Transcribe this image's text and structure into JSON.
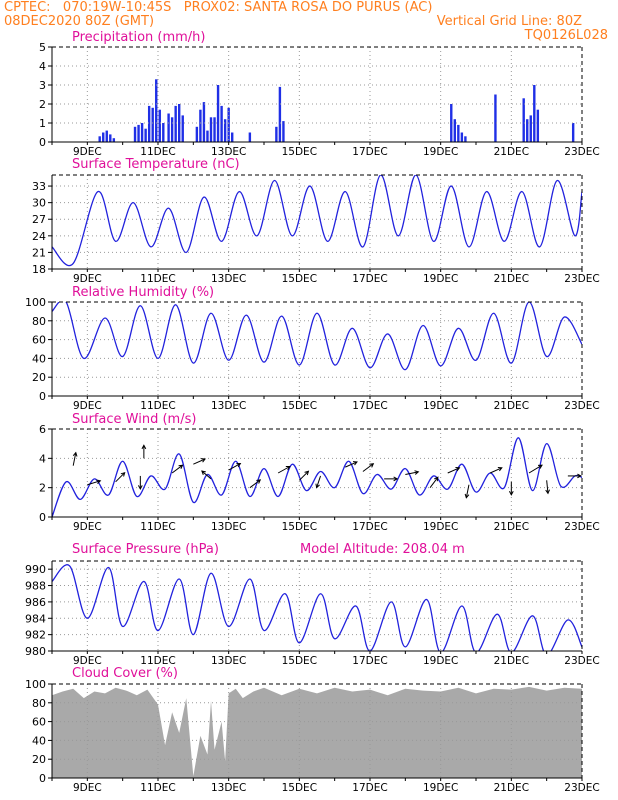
{
  "header": {
    "line1_left": "CPTEC:   070:19W-10:45S   PROX02: SANTA ROSA DO PURUS (AC)",
    "line2_left": "08DEC2020 80Z (GMT)",
    "line2_right": "Vertical Grid Line: 80Z",
    "line3_right": "TQ0126L028"
  },
  "colors": {
    "header": "#ff7f1f",
    "title": "#e0109a",
    "line": "#2222dd",
    "bars": "#1f2fe6",
    "cloud": "#a9a9a9",
    "grid": "#999999"
  },
  "x_axis": {
    "ticks": [
      "9DEC",
      "11DEC",
      "13DEC",
      "15DEC",
      "17DEC",
      "19DEC",
      "21DEC",
      "23DEC"
    ],
    "tick_days": [
      1,
      3,
      5,
      7,
      9,
      11,
      13,
      15
    ],
    "xlim": [
      0,
      15
    ]
  },
  "chart_data": [
    {
      "id": "precip",
      "type": "bar",
      "title": "Precipitation (mm/h)",
      "ylim": [
        0,
        5
      ],
      "yticks": [
        "0",
        "1",
        "2",
        "3",
        "4",
        "5"
      ],
      "x_days": [
        1.35,
        1.45,
        1.55,
        1.65,
        1.75,
        2.35,
        2.45,
        2.55,
        2.65,
        2.75,
        2.85,
        2.95,
        3.05,
        3.15,
        3.3,
        3.4,
        3.5,
        3.6,
        3.7,
        4.1,
        4.2,
        4.3,
        4.4,
        4.5,
        4.6,
        4.7,
        4.8,
        4.9,
        5.0,
        5.1,
        5.6,
        6.35,
        6.45,
        6.55,
        11.3,
        11.4,
        11.5,
        11.6,
        11.7,
        12.55,
        13.35,
        13.45,
        13.55,
        13.65,
        13.75,
        14.75
      ],
      "values": [
        0.3,
        0.5,
        0.6,
        0.4,
        0.2,
        0.8,
        0.9,
        1.0,
        0.7,
        1.9,
        1.8,
        3.3,
        1.7,
        1.0,
        1.5,
        1.3,
        1.9,
        2.0,
        1.4,
        0.8,
        1.7,
        2.1,
        0.6,
        1.3,
        1.3,
        3.0,
        1.9,
        1.2,
        1.8,
        0.5,
        0.5,
        0.8,
        2.9,
        1.1,
        2.0,
        1.2,
        0.9,
        0.5,
        0.3,
        2.5,
        2.3,
        1.2,
        1.4,
        3.0,
        1.7,
        1.0
      ]
    },
    {
      "id": "temp",
      "type": "line",
      "title": "Surface Temperature (nC)",
      "ylim": [
        18,
        35
      ],
      "yticks": [
        "18",
        "21",
        "24",
        "27",
        "30",
        "33"
      ],
      "x_days": [
        0,
        0.6,
        1.3,
        1.8,
        2.3,
        2.8,
        3.3,
        3.8,
        4.3,
        4.8,
        5.3,
        5.8,
        6.3,
        6.8,
        7.3,
        7.8,
        8.3,
        8.8,
        9.3,
        9.8,
        10.3,
        10.8,
        11.3,
        11.8,
        12.3,
        12.8,
        13.3,
        13.8,
        14.3,
        14.8,
        15.0
      ],
      "values": [
        22,
        19,
        32,
        23,
        30,
        22,
        29,
        21,
        31,
        23,
        32,
        24,
        34,
        24,
        33,
        23,
        32,
        22,
        35,
        24,
        35,
        23,
        33,
        22,
        32,
        23,
        32,
        22,
        34,
        24,
        32
      ]
    },
    {
      "id": "rh",
      "type": "line",
      "title": "Relative Humidity (%)",
      "ylim": [
        0,
        100
      ],
      "yticks": [
        "0",
        "20",
        "40",
        "60",
        "80",
        "100"
      ],
      "x_days": [
        0,
        0.4,
        0.9,
        1.5,
        2.0,
        2.5,
        3.0,
        3.5,
        4.0,
        4.5,
        5.0,
        5.5,
        6.0,
        6.5,
        7.0,
        7.5,
        8.0,
        8.5,
        9.0,
        9.5,
        10.0,
        10.5,
        11.0,
        11.5,
        12.0,
        12.5,
        13.0,
        13.5,
        14.0,
        14.5,
        15.0
      ],
      "values": [
        90,
        100,
        40,
        83,
        42,
        96,
        40,
        97,
        35,
        88,
        38,
        86,
        36,
        85,
        33,
        88,
        33,
        72,
        30,
        66,
        28,
        75,
        32,
        72,
        38,
        88,
        35,
        100,
        42,
        84,
        55
      ]
    },
    {
      "id": "wind",
      "type": "line",
      "title": "Surface Wind (m/s)",
      "ylim": [
        0,
        6
      ],
      "yticks": [
        "0",
        "2",
        "4",
        "6"
      ],
      "x_days": [
        0,
        0.4,
        0.8,
        1.2,
        1.6,
        2.0,
        2.4,
        2.8,
        3.2,
        3.6,
        4.0,
        4.4,
        4.8,
        5.2,
        5.6,
        6.0,
        6.4,
        6.8,
        7.2,
        7.6,
        8.0,
        8.4,
        8.8,
        9.2,
        9.6,
        10.0,
        10.4,
        10.8,
        11.2,
        11.6,
        12.0,
        12.4,
        12.8,
        13.2,
        13.6,
        14.0,
        14.4,
        14.8,
        15.0
      ],
      "values": [
        0,
        2.4,
        1.2,
        2.6,
        1.5,
        3.8,
        1.4,
        2.8,
        1.9,
        4.3,
        1.0,
        2.9,
        1.5,
        3.8,
        1.4,
        3.3,
        1.4,
        3.6,
        1.8,
        3.1,
        2.0,
        3.8,
        1.6,
        2.9,
        1.9,
        3.3,
        1.5,
        2.8,
        1.9,
        3.6,
        1.7,
        3.0,
        2.0,
        5.4,
        1.8,
        5.0,
        2.1,
        2.8,
        2.7
      ]
    },
    {
      "id": "pressure",
      "type": "line",
      "title": "Surface Pressure (hPa)",
      "annotation": "Model Altitude: 208.04 m",
      "ylim": [
        980,
        991
      ],
      "yticks": [
        "980",
        "982",
        "984",
        "986",
        "988",
        "990"
      ],
      "x_days": [
        0,
        0.5,
        1.0,
        1.6,
        2.0,
        2.6,
        3.0,
        3.6,
        4.0,
        4.5,
        5.0,
        5.6,
        6.0,
        6.6,
        7.0,
        7.6,
        8.0,
        8.6,
        9.0,
        9.6,
        10.0,
        10.6,
        11.0,
        11.6,
        12.0,
        12.6,
        13.0,
        13.6,
        14.0,
        14.6,
        15.0
      ],
      "values": [
        988.5,
        990.4,
        984.0,
        990.2,
        983.0,
        988.5,
        982.5,
        988.8,
        982.0,
        989.5,
        983.0,
        988.8,
        982.5,
        987.0,
        981.0,
        987.0,
        981.5,
        985.5,
        980.0,
        986.0,
        980.5,
        986.3,
        979.8,
        985.5,
        979.8,
        984.5,
        979.8,
        984.3,
        979.5,
        983.8,
        980.5
      ]
    },
    {
      "id": "cloud",
      "type": "area",
      "title": "Cloud Cover (%)",
      "ylim": [
        0,
        100
      ],
      "yticks": [
        "0",
        "20",
        "40",
        "60",
        "80",
        "100"
      ],
      "x_days": [
        0,
        0.3,
        0.6,
        0.9,
        1.2,
        1.5,
        1.8,
        2.1,
        2.4,
        2.7,
        3.0,
        3.2,
        3.4,
        3.6,
        3.8,
        4.0,
        4.2,
        4.4,
        4.5,
        4.6,
        4.8,
        4.9,
        5.0,
        5.2,
        5.4,
        5.7,
        6.0,
        6.5,
        7.0,
        7.5,
        8.0,
        8.5,
        9.0,
        9.5,
        10.0,
        10.5,
        11.0,
        11.5,
        12.0,
        12.5,
        13.0,
        13.5,
        14.0,
        14.5,
        15.0
      ],
      "values": [
        88,
        92,
        95,
        85,
        92,
        90,
        96,
        93,
        88,
        94,
        78,
        35,
        70,
        48,
        85,
        2,
        45,
        25,
        82,
        30,
        60,
        18,
        90,
        95,
        85,
        92,
        96,
        88,
        95,
        90,
        96,
        92,
        94,
        88,
        95,
        93,
        92,
        96,
        90,
        95,
        94,
        97,
        93,
        96,
        95
      ]
    }
  ],
  "wind_arrows_note": "",
  "wind_arrows": [
    {
      "day": 0.6,
      "v": 3.5,
      "dx": 0.2,
      "dy": -1
    },
    {
      "day": 1.0,
      "v": 2.2,
      "dx": 1,
      "dy": -0.3
    },
    {
      "day": 1.8,
      "v": 2.4,
      "dx": 0.7,
      "dy": -0.7
    },
    {
      "day": 2.5,
      "v": 2.8,
      "dx": 0,
      "dy": 1
    },
    {
      "day": 2.6,
      "v": 4.0,
      "dx": 0,
      "dy": -1
    },
    {
      "day": 3.4,
      "v": 3.0,
      "dx": 0.8,
      "dy": -0.6
    },
    {
      "day": 4.0,
      "v": 3.6,
      "dx": 0.9,
      "dy": -0.4
    },
    {
      "day": 4.5,
      "v": 2.6,
      "dx": -0.7,
      "dy": -0.6
    },
    {
      "day": 5.0,
      "v": 3.2,
      "dx": 0.9,
      "dy": -0.5
    },
    {
      "day": 5.6,
      "v": 2.0,
      "dx": 0.8,
      "dy": -0.6
    },
    {
      "day": 6.4,
      "v": 3.0,
      "dx": 0.9,
      "dy": -0.5
    },
    {
      "day": 7.0,
      "v": 2.5,
      "dx": 0.7,
      "dy": -0.7
    },
    {
      "day": 7.6,
      "v": 2.8,
      "dx": -0.3,
      "dy": 0.9
    },
    {
      "day": 8.3,
      "v": 3.4,
      "dx": 0.9,
      "dy": -0.4
    },
    {
      "day": 8.8,
      "v": 3.1,
      "dx": 0.8,
      "dy": -0.6
    },
    {
      "day": 9.4,
      "v": 2.6,
      "dx": 1,
      "dy": 0
    },
    {
      "day": 10.0,
      "v": 2.9,
      "dx": 1,
      "dy": -0.2
    },
    {
      "day": 10.7,
      "v": 2.0,
      "dx": 0.6,
      "dy": -0.8
    },
    {
      "day": 11.2,
      "v": 3.0,
      "dx": 0.9,
      "dy": -0.4
    },
    {
      "day": 11.8,
      "v": 2.2,
      "dx": -0.2,
      "dy": 1
    },
    {
      "day": 12.4,
      "v": 3.0,
      "dx": 0.9,
      "dy": -0.4
    },
    {
      "day": 13.0,
      "v": 2.4,
      "dx": 0,
      "dy": 1
    },
    {
      "day": 13.5,
      "v": 3.0,
      "dx": 1,
      "dy": -0.6
    },
    {
      "day": 14.0,
      "v": 2.5,
      "dx": 0.1,
      "dy": 1
    },
    {
      "day": 14.6,
      "v": 2.8,
      "dx": 1,
      "dy": 0
    }
  ]
}
